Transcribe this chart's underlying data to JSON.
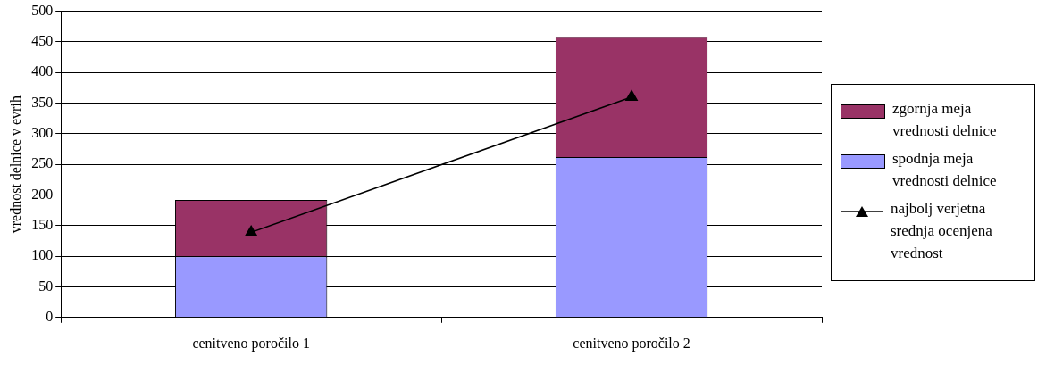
{
  "chart_data": {
    "type": "bar",
    "stacked": true,
    "ylabel": "vrednost delnice v evrih",
    "categories": [
      "cenitveno poročilo 1",
      "cenitveno poročilo 2"
    ],
    "series": [
      {
        "name": "spodnja meja vrednosti delnice",
        "color": "#9999ff",
        "values": [
          100,
          262
        ]
      },
      {
        "name": "zgornja meja vrednosti delnice",
        "color": "#993366",
        "values": [
          92,
          196
        ]
      },
      {
        "name": "najbolj verjetna srednja ocenjena vrednost",
        "type": "line",
        "color": "#000000",
        "marker": "triangle",
        "values": [
          139,
          360
        ]
      }
    ],
    "ylim": [
      0,
      500
    ],
    "yticks": [
      0,
      50,
      100,
      150,
      200,
      250,
      300,
      350,
      400,
      450,
      500
    ],
    "grid": "y",
    "legend": "right"
  }
}
